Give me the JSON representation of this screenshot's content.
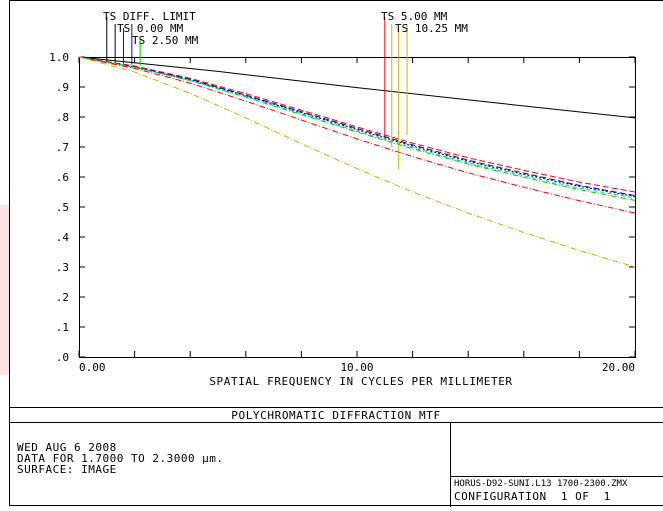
{
  "chart_data": {
    "type": "line",
    "title": "POLYCHROMATIC DIFFRACTION MTF",
    "xlabel": "SPATIAL FREQUENCY IN CYCLES PER MILLIMETER",
    "ylabel": "",
    "xlim": [
      0,
      20
    ],
    "ylim": [
      0,
      1
    ],
    "x_tick_labels": [
      {
        "v": 0,
        "t": "0.00"
      },
      {
        "v": 10,
        "t": "10.00"
      },
      {
        "v": 20,
        "t": "20.00"
      }
    ],
    "x_minor_ticks": [
      2,
      4,
      6,
      8,
      12,
      14,
      16,
      18
    ],
    "y_tick_labels": [
      {
        "v": 0.0,
        "t": ".0"
      },
      {
        "v": 0.1,
        "t": ".1"
      },
      {
        "v": 0.2,
        "t": ".2"
      },
      {
        "v": 0.3,
        "t": ".3"
      },
      {
        "v": 0.4,
        "t": ".4"
      },
      {
        "v": 0.5,
        "t": ".5"
      },
      {
        "v": 0.6,
        "t": ".6"
      },
      {
        "v": 0.7,
        "t": ".7"
      },
      {
        "v": 0.8,
        "t": ".8"
      },
      {
        "v": 0.9,
        "t": ".9"
      },
      {
        "v": 1.0,
        "t": "1.0"
      }
    ],
    "legend": [
      {
        "text": "TS DIFF. LIMIT",
        "color": "#000000",
        "marker_x": 1.0
      },
      {
        "text": "TS 0.00 MM",
        "color": "#0000ff",
        "marker_x": 1.6
      },
      {
        "text": "TS 2.50 MM",
        "color": "#00cc00",
        "marker_x": 2.2
      },
      {
        "text": "TS 5.00 MM",
        "color": "#ff0000",
        "marker_x": 11.0
      },
      {
        "text": "TS 10.25 MM",
        "color": "#c8b400",
        "marker_x": 11.5
      }
    ],
    "series": [
      {
        "color": "#000000",
        "dash": "",
        "x": [
          0,
          5,
          10,
          15,
          20
        ],
        "y": [
          1.0,
          0.952,
          0.898,
          0.847,
          0.797
        ]
      },
      {
        "color": "#0000ff",
        "dash": "6 3",
        "x": [
          0,
          2,
          4,
          6,
          8,
          10,
          12,
          14,
          16,
          18,
          20
        ],
        "y": [
          1.0,
          0.968,
          0.926,
          0.873,
          0.818,
          0.762,
          0.707,
          0.656,
          0.613,
          0.572,
          0.538
        ]
      },
      {
        "color": "#ff0000",
        "dash": "6 3",
        "x": [
          0,
          2,
          4,
          6,
          8,
          10,
          12,
          14,
          16,
          18,
          20
        ],
        "y": [
          1.0,
          0.97,
          0.929,
          0.878,
          0.823,
          0.767,
          0.713,
          0.664,
          0.622,
          0.583,
          0.55
        ]
      },
      {
        "color": "#000000",
        "dash": "2 2",
        "x": [
          0,
          2,
          4,
          6,
          8,
          10,
          12,
          14,
          16,
          18,
          20
        ],
        "y": [
          1.0,
          0.967,
          0.924,
          0.871,
          0.815,
          0.758,
          0.703,
          0.652,
          0.609,
          0.569,
          0.535
        ]
      },
      {
        "color": "#00cc00",
        "dash": "5 2 1 2",
        "x": [
          0,
          2,
          4,
          6,
          8,
          10,
          12,
          14,
          16,
          18,
          20
        ],
        "y": [
          1.0,
          0.965,
          0.921,
          0.866,
          0.808,
          0.75,
          0.694,
          0.643,
          0.599,
          0.558,
          0.522
        ]
      },
      {
        "color": "#00cccc",
        "dash": "4 3",
        "x": [
          0,
          2,
          4,
          6,
          8,
          10,
          12,
          14,
          16,
          18,
          20
        ],
        "y": [
          1.0,
          0.966,
          0.922,
          0.868,
          0.811,
          0.753,
          0.698,
          0.647,
          0.604,
          0.563,
          0.53
        ]
      },
      {
        "color": "#ff0000",
        "dash": "6 2 1 2",
        "x": [
          0,
          2,
          4,
          6,
          8,
          10,
          12,
          14,
          16,
          18,
          20
        ],
        "y": [
          1.0,
          0.962,
          0.913,
          0.853,
          0.79,
          0.727,
          0.668,
          0.614,
          0.566,
          0.521,
          0.48
        ]
      },
      {
        "color": "#c8b400",
        "dash": "6 2 1 2",
        "x": [
          0,
          2,
          4,
          6,
          8,
          10,
          12,
          14,
          16,
          18,
          20
        ],
        "y": [
          1.0,
          0.95,
          0.879,
          0.797,
          0.711,
          0.628,
          0.55,
          0.48,
          0.415,
          0.355,
          0.3
        ]
      }
    ]
  },
  "info": {
    "date": "WED AUG 6 2008",
    "data_range": "DATA FOR 1.7000 TO 2.3000 µm.",
    "surface": "SURFACE: IMAGE",
    "file_name": "HORUS-D92-SUNI.L13 1700-2300.ZMX",
    "configuration": "CONFIGURATION  1 OF  1"
  }
}
